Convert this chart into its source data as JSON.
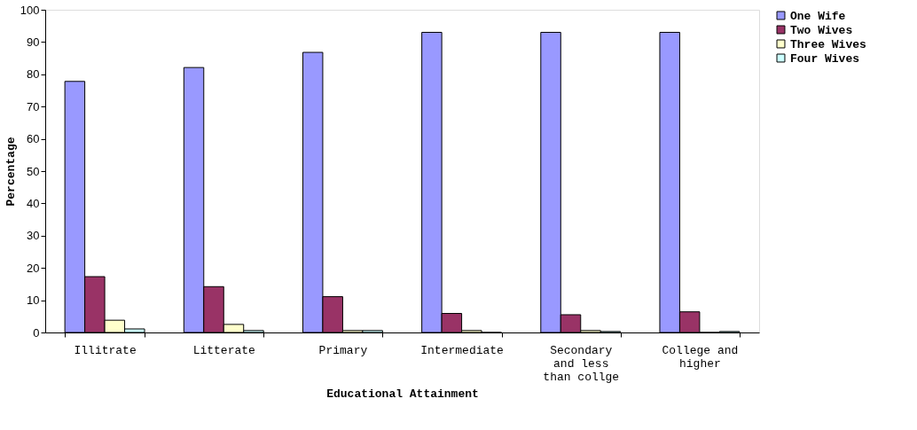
{
  "chart_data": {
    "type": "bar",
    "xlabel": "Educational Attainment",
    "ylabel": "Percentage",
    "categories": [
      "Illitrate",
      "Litterate",
      "Primary",
      "Intermediate",
      "Secondary and less than collge",
      "College and higher"
    ],
    "series": [
      {
        "name": "One Wife",
        "color": "#9999ff",
        "values": [
          77.8,
          82.1,
          86.8,
          93,
          93,
          93
        ]
      },
      {
        "name": "Two Wives",
        "color": "#993366",
        "values": [
          17.3,
          14.2,
          11.1,
          5.9,
          5.5,
          6.4
        ]
      },
      {
        "name": "Three Wives",
        "color": "#ffffcc",
        "values": [
          3.8,
          2.5,
          0.6,
          0.6,
          0.6,
          0
        ]
      },
      {
        "name": "Four Wives",
        "color": "#ccffff",
        "values": [
          1.1,
          0.6,
          0.6,
          0,
          0.3,
          0.3
        ]
      }
    ],
    "ylim": [
      0,
      100
    ],
    "yticks": [
      0,
      10,
      20,
      30,
      40,
      50,
      60,
      70,
      80,
      90,
      100
    ],
    "grid": false,
    "legend": "right"
  }
}
